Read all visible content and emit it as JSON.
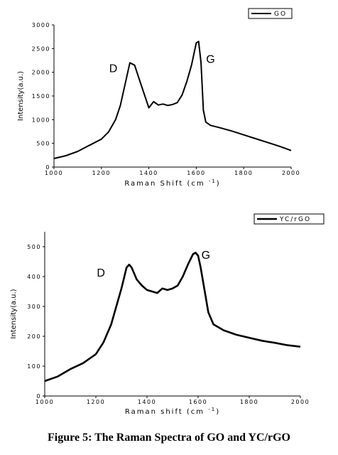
{
  "caption": "Figure 5: The Raman Spectra of GO and YC/rGO",
  "colors": {
    "line": "#000000",
    "axis": "#000000",
    "background": "#ffffff"
  },
  "chart_data": [
    {
      "type": "line",
      "xlabel": "Raman Shift (cm",
      "xlabel_sup": "-1",
      "xlabel_close": ")",
      "ylabel": "Intensity(a.u.)",
      "xlim": [
        1000,
        2000
      ],
      "ylim": [
        0,
        3000
      ],
      "xticks": [
        1000,
        1200,
        1400,
        1600,
        1800,
        2000
      ],
      "yticks": [
        0,
        500,
        1000,
        1500,
        2000,
        2500,
        3000
      ],
      "grid": false,
      "legend_position": "top-right",
      "annotations": [
        {
          "text": "D",
          "x": 1250,
          "y": 2000
        },
        {
          "text": "G",
          "x": 1660,
          "y": 2200
        }
      ],
      "series": [
        {
          "name": "GO",
          "x": [
            1000,
            1050,
            1100,
            1150,
            1200,
            1230,
            1260,
            1280,
            1300,
            1320,
            1340,
            1360,
            1380,
            1400,
            1420,
            1440,
            1460,
            1480,
            1500,
            1520,
            1540,
            1560,
            1580,
            1600,
            1610,
            1620,
            1630,
            1640,
            1660,
            1700,
            1750,
            1800,
            1850,
            1900,
            1950,
            2000
          ],
          "y": [
            180,
            240,
            330,
            460,
            590,
            740,
            1000,
            1300,
            1750,
            2200,
            2150,
            1850,
            1550,
            1250,
            1380,
            1310,
            1330,
            1300,
            1320,
            1360,
            1520,
            1800,
            2150,
            2620,
            2650,
            2200,
            1200,
            950,
            880,
            830,
            760,
            680,
            600,
            520,
            440,
            350
          ]
        }
      ]
    },
    {
      "type": "line",
      "xlabel": "Raman shift (cm",
      "xlabel_sup": "-1",
      "xlabel_close": ")",
      "ylabel": "Intensity(a.u.)",
      "xlim": [
        1000,
        2000
      ],
      "ylim": [
        0,
        550
      ],
      "xticks": [
        1000,
        1200,
        1400,
        1600,
        1800,
        2000
      ],
      "yticks": [
        0,
        100,
        200,
        300,
        400,
        500
      ],
      "grid": false,
      "legend_position": "top-right",
      "annotations": [
        {
          "text": "D",
          "x": 1220,
          "y": 400
        },
        {
          "text": "G",
          "x": 1630,
          "y": 460
        }
      ],
      "series": [
        {
          "name": "YC/rGO",
          "x": [
            1000,
            1050,
            1100,
            1150,
            1200,
            1230,
            1260,
            1280,
            1300,
            1320,
            1330,
            1340,
            1360,
            1380,
            1400,
            1420,
            1440,
            1460,
            1480,
            1500,
            1520,
            1540,
            1560,
            1580,
            1590,
            1600,
            1610,
            1620,
            1640,
            1660,
            1700,
            1750,
            1800,
            1850,
            1900,
            1950,
            2000
          ],
          "y": [
            50,
            65,
            90,
            110,
            140,
            180,
            240,
            300,
            360,
            430,
            440,
            430,
            390,
            370,
            355,
            350,
            345,
            360,
            355,
            360,
            370,
            400,
            440,
            475,
            480,
            470,
            430,
            380,
            280,
            240,
            220,
            205,
            195,
            185,
            178,
            170,
            165
          ]
        }
      ]
    }
  ]
}
